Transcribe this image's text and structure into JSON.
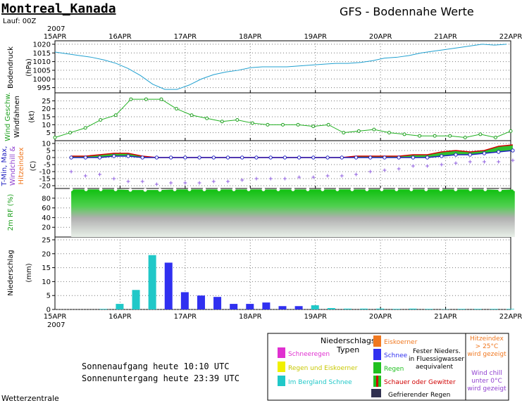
{
  "header": {
    "station": "Montreal_Kanada",
    "run": "Lauf: 00Z",
    "title": "GFS - Bodennahe Werte",
    "year": "2007"
  },
  "footer": {
    "sunrise": "Sonnenaufgang heute 10:10 UTC",
    "sunset": "Sonnenuntergang heute 23:39 UTC",
    "brand": "Wetterzentrale"
  },
  "dates": [
    "15APR",
    "16APR",
    "17APR",
    "18APR",
    "19APR",
    "20APR",
    "21APR",
    "22APR"
  ],
  "legend": {
    "title1": "Niederschlags",
    "title2": "Typen",
    "items": [
      {
        "label": "Schneeregen",
        "color": "#e030d0"
      },
      {
        "label": "Regen und Eiskoerner",
        "color": "#f0f000"
      },
      {
        "label": "Im Bergland Schnee",
        "color": "#20c8c8"
      },
      {
        "label": "Eiskoerner",
        "color": "#f07820"
      },
      {
        "label": "Schnee",
        "color": "#3030f0"
      },
      {
        "label": "Regen",
        "color": "#20c020"
      },
      {
        "label": "Schauer oder Gewitter",
        "color": "#d00000"
      }
    ],
    "fester1": "Fester Nieders.",
    "fester2": "in Fluessigwasser",
    "fester3": "aequivalent",
    "freezing": "Gefrierender Regen",
    "freezing_color": "#303050",
    "heat1": "Hitzeindex",
    "heat2": "> 25°C",
    "heat3": "wird gezeigt",
    "chill1": "Wind chill",
    "chill2": "unter 0°C",
    "chill3": "wird gezeigt"
  },
  "panels": {
    "pressure": {
      "label1": "Bodendruck",
      "label2": "(hPa)",
      "ticks": [
        995,
        1000,
        1005,
        1010,
        1015,
        1020
      ]
    },
    "wind": {
      "label1": "Wind Geschw.",
      "label2": "Windfahnen",
      "label3": "(kt)",
      "ticks": [
        5,
        10,
        15,
        20,
        25
      ]
    },
    "temp": {
      "label1": "T-Min, Max,",
      "label2": "Windchill &",
      "label3": "Hitzeindex",
      "label4": "(C)",
      "ticks": [
        -20,
        -15,
        -10,
        -5,
        0,
        5,
        10
      ]
    },
    "rh": {
      "label1": "2m RF (%)",
      "ticks": [
        20,
        40,
        60,
        80
      ]
    },
    "precip": {
      "label1": "Niederschlag",
      "label2": "(mm)",
      "ticks": [
        0,
        5,
        10,
        15,
        20,
        25
      ]
    }
  },
  "chart_data": [
    {
      "type": "line",
      "name": "Bodendruck",
      "x_step_hours": 6,
      "y": [
        1015.5,
        1014.5,
        1013.5,
        1012.5,
        1011,
        1009,
        1006,
        1002,
        997,
        994,
        994,
        996.5,
        1000,
        1002.5,
        1004,
        1005,
        1006.5,
        1007,
        1007,
        1007,
        1007.5,
        1008,
        1008.5,
        1009,
        1009,
        1009.5,
        1010.5,
        1012,
        1012.5,
        1013.5,
        1015,
        1016,
        1017,
        1018,
        1019,
        1020,
        1019.5,
        1020
      ],
      "ylim": [
        992,
        1022
      ]
    },
    {
      "type": "line",
      "name": "Wind",
      "x_step_hours": 6,
      "y": [
        2,
        5,
        8,
        13,
        16,
        26,
        26,
        26,
        20,
        16,
        14,
        12,
        13,
        11,
        10,
        10,
        10,
        9,
        10,
        5,
        6,
        7,
        5,
        4,
        3,
        3,
        3,
        2,
        4,
        2,
        6
      ],
      "ylim": [
        0,
        30
      ]
    },
    {
      "type": "line",
      "name": "Temperatur",
      "x_step_hours": 6,
      "tmax": [
        1,
        1,
        2,
        3,
        3,
        1,
        0,
        0,
        0,
        0,
        0,
        0,
        0,
        0,
        0,
        0,
        0,
        0,
        0,
        0,
        1,
        1,
        1,
        1,
        2,
        2,
        4,
        5,
        4,
        5,
        8,
        9
      ],
      "tmin": [
        0,
        0,
        0,
        1,
        1,
        0,
        0,
        0,
        0,
        0,
        0,
        0,
        0,
        0,
        0,
        0,
        0,
        0,
        0,
        0,
        0,
        0,
        0,
        0,
        0,
        0,
        1,
        2,
        2,
        3,
        4,
        5
      ],
      "windchill": [
        -10,
        -13,
        -12,
        -15,
        -17,
        -17,
        -19,
        -18,
        -18,
        -18,
        -17,
        -17,
        -16,
        -15,
        -15,
        -15,
        -14,
        -14,
        -13,
        -13,
        -12,
        -10,
        -9,
        -8,
        -6,
        -6,
        -5,
        -4,
        -3,
        -3,
        -3,
        -2
      ],
      "ylim": [
        -22,
        12
      ]
    },
    {
      "type": "area",
      "name": "2m RF",
      "x_step_hours": 6,
      "y": [
        98,
        98,
        98,
        98,
        97,
        97,
        97,
        98,
        98,
        98,
        98,
        98,
        98,
        98,
        98,
        98,
        98,
        98,
        98,
        98,
        98,
        98,
        98,
        98,
        98,
        98,
        98,
        98,
        98,
        97,
        98
      ],
      "ylim": [
        0,
        100
      ]
    },
    {
      "type": "bar",
      "name": "Niederschlag",
      "x_step_hours": 6,
      "values": [
        0,
        0,
        0.2,
        2,
        7,
        19.5,
        16.8,
        6.2,
        5,
        4.5,
        2,
        2,
        2.5,
        1.2,
        1.2,
        1.5,
        0.5,
        0.3,
        0.3,
        0.3,
        0.2,
        0.3,
        0.2,
        0.1,
        0.2,
        0.2,
        0.2,
        0.2
      ],
      "colors": [
        "t",
        "t",
        "t",
        "t",
        "t",
        "t",
        "s",
        "s",
        "s",
        "s",
        "s",
        "s",
        "s",
        "s",
        "s",
        "t",
        "t",
        "t",
        "t",
        "t",
        "t",
        "t",
        "t",
        "t",
        "t",
        "t",
        "t",
        "t"
      ],
      "ylim": [
        0,
        26
      ]
    }
  ]
}
